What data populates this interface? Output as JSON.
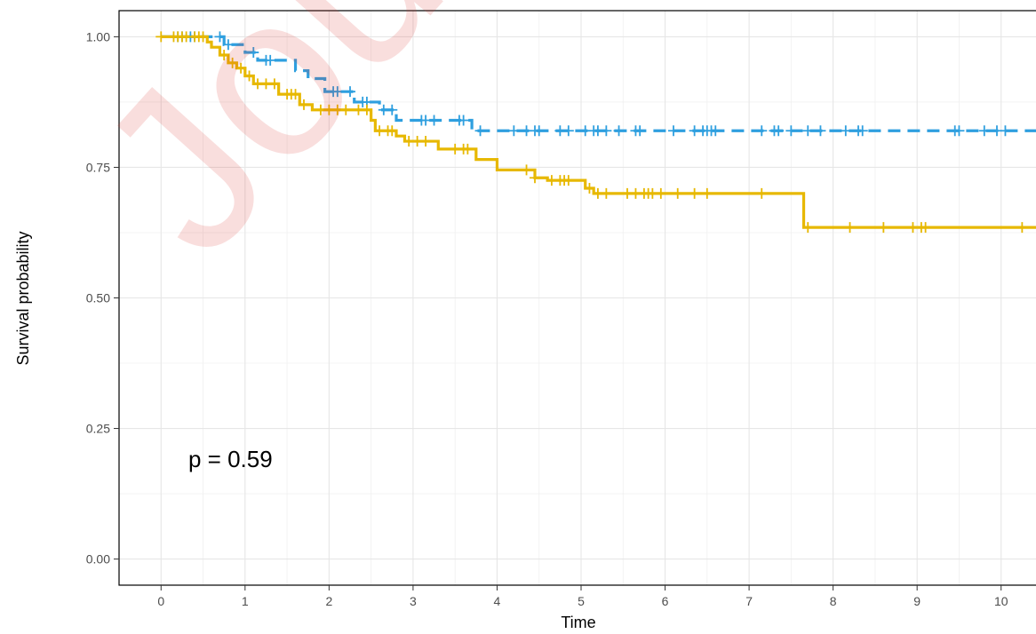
{
  "watermark": "Journal",
  "chart_data": {
    "type": "line",
    "subtype": "kaplan-meier",
    "xlabel": "Time",
    "ylabel": "Survival probability",
    "xlim": [
      -0.5,
      10.5
    ],
    "ylim": [
      -0.05,
      1.05
    ],
    "x_ticks": [
      0,
      1,
      2,
      3,
      4,
      5,
      6,
      7,
      8,
      9,
      10
    ],
    "y_ticks": [
      0.0,
      0.25,
      0.5,
      0.75,
      1.0
    ],
    "y_tick_labels": [
      "0.00",
      "0.25",
      "0.50",
      "0.75",
      "1.00"
    ],
    "grid": true,
    "legend": "none",
    "annotation": "p = 0.59",
    "series": [
      {
        "color": "#E7B800",
        "line_style": "solid",
        "steps": [
          [
            0,
            1.0
          ],
          [
            0.55,
            0.99
          ],
          [
            0.6,
            0.98
          ],
          [
            0.7,
            0.965
          ],
          [
            0.8,
            0.95
          ],
          [
            0.9,
            0.94
          ],
          [
            1.0,
            0.925
          ],
          [
            1.1,
            0.91
          ],
          [
            1.4,
            0.89
          ],
          [
            1.65,
            0.87
          ],
          [
            1.8,
            0.86
          ],
          [
            2.5,
            0.84
          ],
          [
            2.55,
            0.82
          ],
          [
            2.8,
            0.81
          ],
          [
            2.9,
            0.8
          ],
          [
            3.3,
            0.785
          ],
          [
            3.75,
            0.765
          ],
          [
            4.0,
            0.745
          ],
          [
            4.45,
            0.73
          ],
          [
            4.6,
            0.725
          ],
          [
            5.05,
            0.71
          ],
          [
            5.15,
            0.7
          ],
          [
            7.65,
            0.635
          ],
          [
            10.5,
            0.635
          ]
        ],
        "censor_times": [
          0,
          0.15,
          0.2,
          0.25,
          0.3,
          0.4,
          0.45,
          0.5,
          0.75,
          0.85,
          0.95,
          1.05,
          1.15,
          1.25,
          1.35,
          1.5,
          1.55,
          1.6,
          1.7,
          1.9,
          2.0,
          2.1,
          2.2,
          2.35,
          2.45,
          2.6,
          2.7,
          2.75,
          2.95,
          3.05,
          3.15,
          3.5,
          3.6,
          3.65,
          4.35,
          4.45,
          4.65,
          4.75,
          4.8,
          4.85,
          5.1,
          5.2,
          5.3,
          5.55,
          5.65,
          5.75,
          5.8,
          5.85,
          5.95,
          6.15,
          6.35,
          6.5,
          7.15,
          7.7,
          8.2,
          8.6,
          8.95,
          9.05,
          9.1,
          10.25
        ]
      },
      {
        "color": "#2E9FDF",
        "line_style": "dashed",
        "steps": [
          [
            0,
            1.0
          ],
          [
            0.75,
            0.985
          ],
          [
            1.0,
            0.97
          ],
          [
            1.15,
            0.955
          ],
          [
            1.6,
            0.935
          ],
          [
            1.75,
            0.92
          ],
          [
            1.95,
            0.895
          ],
          [
            2.3,
            0.875
          ],
          [
            2.6,
            0.86
          ],
          [
            2.8,
            0.84
          ],
          [
            3.7,
            0.82
          ],
          [
            10.5,
            0.82
          ]
        ],
        "censor_times": [
          0.2,
          0.25,
          0.35,
          0.4,
          0.7,
          0.8,
          1.1,
          1.25,
          1.3,
          2.05,
          2.1,
          2.25,
          2.4,
          2.45,
          2.65,
          2.75,
          3.1,
          3.15,
          3.25,
          3.55,
          3.6,
          3.8,
          4.2,
          4.35,
          4.45,
          4.5,
          4.75,
          4.85,
          5.05,
          5.15,
          5.2,
          5.3,
          5.45,
          5.65,
          5.7,
          6.1,
          6.35,
          6.45,
          6.5,
          6.55,
          6.6,
          7.15,
          7.3,
          7.35,
          7.5,
          7.7,
          7.85,
          8.15,
          8.3,
          8.35,
          9.45,
          9.5,
          9.8,
          9.95,
          10.05,
          10.45
        ]
      }
    ]
  }
}
